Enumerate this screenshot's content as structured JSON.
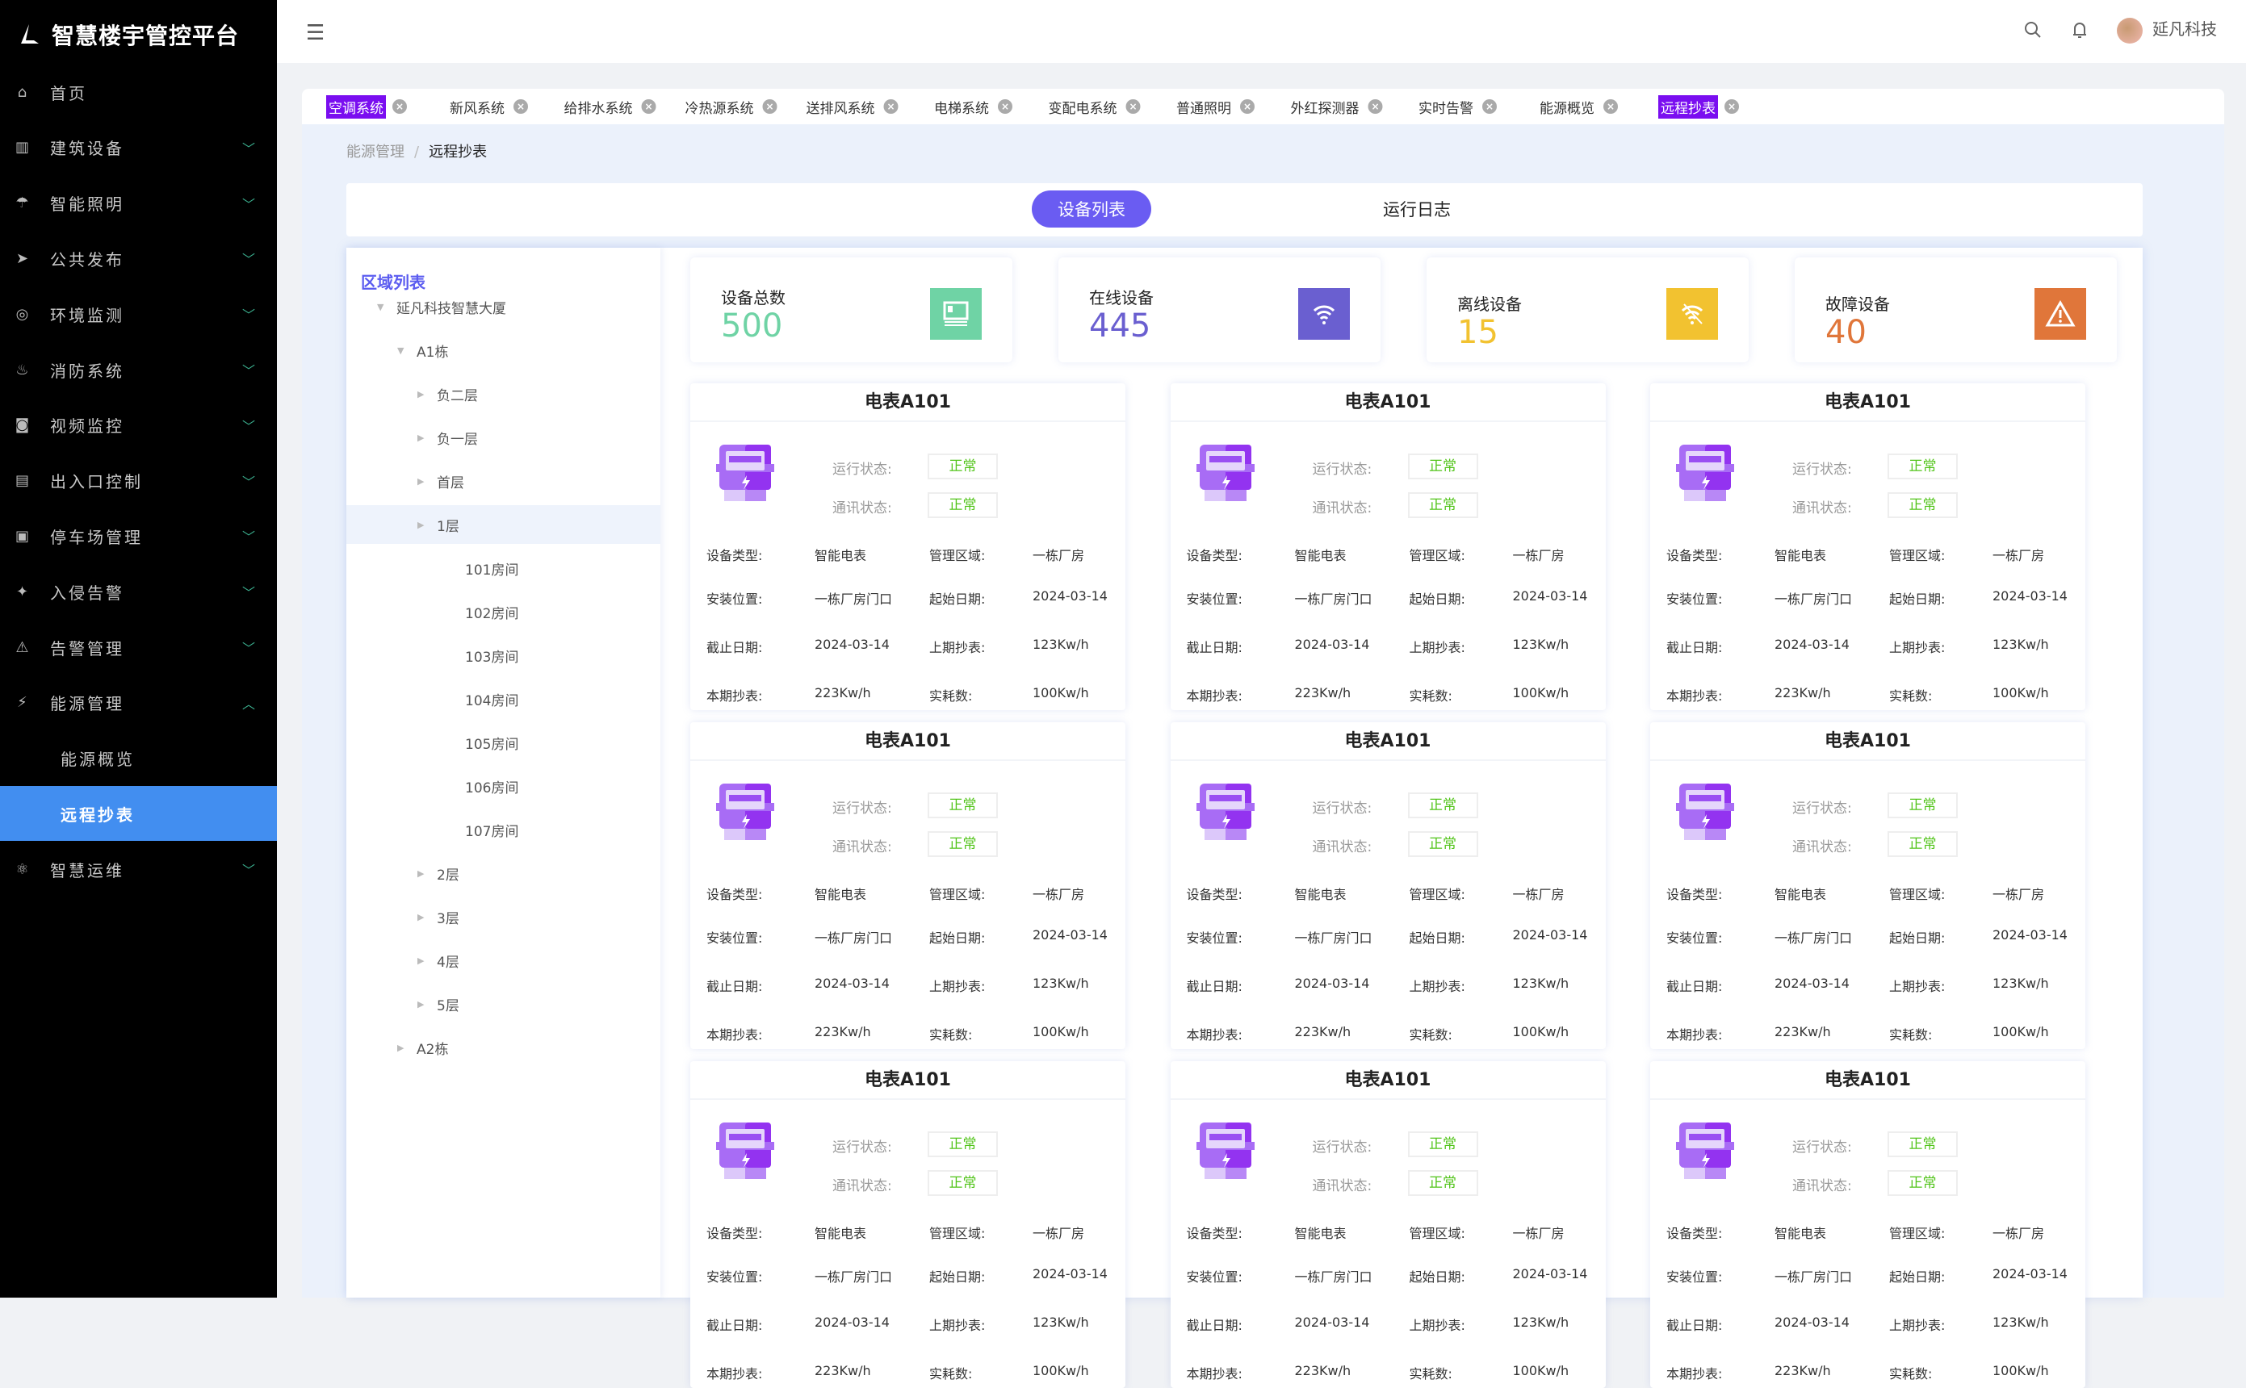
{
  "app": {
    "title": "智慧楼宇管控平台"
  },
  "sidebar": {
    "items": [
      {
        "label": "首页",
        "icon": "bank-icon",
        "glyph": "⌂",
        "chevron": ""
      },
      {
        "label": "建筑设备",
        "icon": "building-icon",
        "glyph": "▥",
        "chevron": "down"
      },
      {
        "label": "智能照明",
        "icon": "lamp-icon",
        "glyph": "☂",
        "chevron": "down"
      },
      {
        "label": "公共发布",
        "icon": "send-icon",
        "glyph": "➤",
        "chevron": "down"
      },
      {
        "label": "环境监测",
        "icon": "environment-icon",
        "glyph": "◎",
        "chevron": "down"
      },
      {
        "label": "消防系统",
        "icon": "fire-icon",
        "glyph": "♨",
        "chevron": "down"
      },
      {
        "label": "视频监控",
        "icon": "camera-icon",
        "glyph": "◙",
        "chevron": "down"
      },
      {
        "label": "出入口控制",
        "icon": "door-icon",
        "glyph": "▤",
        "chevron": "down"
      },
      {
        "label": "停车场管理",
        "icon": "parking-icon",
        "glyph": "▣",
        "chevron": "down"
      },
      {
        "label": "入侵告警",
        "icon": "intruder-icon",
        "glyph": "✦",
        "chevron": "down"
      },
      {
        "label": "告警管理",
        "icon": "alarm-icon",
        "glyph": "⚠",
        "chevron": "down"
      },
      {
        "label": "能源管理",
        "icon": "energy-icon",
        "glyph": "⚡",
        "chevron": "up"
      },
      {
        "label": "能源概览",
        "sub": true,
        "chevron": ""
      },
      {
        "label": "远程抄表",
        "sub": true,
        "active": true,
        "chevron": ""
      },
      {
        "label": "智慧运维",
        "icon": "atom-icon",
        "glyph": "⚛",
        "chevron": "down"
      }
    ]
  },
  "header": {
    "user": "延凡科技"
  },
  "tabs": [
    {
      "label": "空调系统",
      "active": true
    },
    {
      "label": "新风系统"
    },
    {
      "label": "给排水系统"
    },
    {
      "label": "冷热源系统"
    },
    {
      "label": "送排风系统"
    },
    {
      "label": "电梯系统"
    },
    {
      "label": "变配电系统"
    },
    {
      "label": "普通照明"
    },
    {
      "label": "外红探测器"
    },
    {
      "label": "实时告警"
    },
    {
      "label": "能源概览"
    },
    {
      "label": "远程抄表",
      "active": true
    }
  ],
  "breadcrumb": {
    "parent": "能源管理",
    "current": "远程抄表"
  },
  "switch": {
    "device_list": "设备列表",
    "run_log": "运行日志"
  },
  "tree": {
    "title": "区域列表",
    "nodes": [
      {
        "label": "延凡科技智慧大厦",
        "level": 0,
        "arrow": "down"
      },
      {
        "label": "A1栋",
        "level": 1,
        "arrow": "down"
      },
      {
        "label": "负二层",
        "level": 2,
        "arrow": "right"
      },
      {
        "label": "负一层",
        "level": 2,
        "arrow": "right"
      },
      {
        "label": "首层",
        "level": 2,
        "arrow": "right"
      },
      {
        "label": "1层",
        "level": 2,
        "arrow": "right",
        "selected": true
      },
      {
        "label": "101房间",
        "level": 3
      },
      {
        "label": "102房间",
        "level": 3
      },
      {
        "label": "103房间",
        "level": 3
      },
      {
        "label": "104房间",
        "level": 3
      },
      {
        "label": "105房间",
        "level": 3
      },
      {
        "label": "106房间",
        "level": 3
      },
      {
        "label": "107房间",
        "level": 3
      },
      {
        "label": "2层",
        "level": 2,
        "arrow": "right"
      },
      {
        "label": "3层",
        "level": 2,
        "arrow": "right"
      },
      {
        "label": "4层",
        "level": 2,
        "arrow": "right"
      },
      {
        "label": "5层",
        "level": 2,
        "arrow": "right"
      },
      {
        "label": "A2栋",
        "level": 1,
        "arrow": "right"
      }
    ]
  },
  "stats": [
    {
      "label": "设备总数",
      "value": "500",
      "color": "#6fd3a5",
      "icon": "device-icon"
    },
    {
      "label": "在线设备",
      "value": "445",
      "color": "#6a5fd0",
      "icon": "wifi-icon"
    },
    {
      "label": "离线设备",
      "value": "15",
      "color": "#f2c230",
      "icon": "wifi-off-icon"
    },
    {
      "label": "故障设备",
      "value": "40",
      "color": "#e0763a",
      "icon": "warning-icon"
    }
  ],
  "card_labels": {
    "run": "运行状态:",
    "comm": "通讯状态:",
    "type": "设备类型:",
    "area": "管理区域:",
    "loc": "安装位置:",
    "start": "起始日期:",
    "end": "截止日期:",
    "last": "上期抄表:",
    "cur": "本期抄表:",
    "used": "实耗数:"
  },
  "cards": [
    {
      "title": "电表A101",
      "run": "正常",
      "comm": "正常",
      "type": "智能电表",
      "area": "一栋厂房",
      "loc": "一栋厂房门口",
      "start": "2024-03-14",
      "end": "2024-03-14",
      "last": "123Kw/h",
      "cur": "223Kw/h",
      "used": "100Kw/h"
    },
    {
      "title": "电表A101",
      "run": "正常",
      "comm": "正常",
      "type": "智能电表",
      "area": "一栋厂房",
      "loc": "一栋厂房门口",
      "start": "2024-03-14",
      "end": "2024-03-14",
      "last": "123Kw/h",
      "cur": "223Kw/h",
      "used": "100Kw/h"
    },
    {
      "title": "电表A101",
      "run": "正常",
      "comm": "正常",
      "type": "智能电表",
      "area": "一栋厂房",
      "loc": "一栋厂房门口",
      "start": "2024-03-14",
      "end": "2024-03-14",
      "last": "123Kw/h",
      "cur": "223Kw/h",
      "used": "100Kw/h"
    },
    {
      "title": "电表A101",
      "run": "正常",
      "comm": "正常",
      "type": "智能电表",
      "area": "一栋厂房",
      "loc": "一栋厂房门口",
      "start": "2024-03-14",
      "end": "2024-03-14",
      "last": "123Kw/h",
      "cur": "223Kw/h",
      "used": "100Kw/h"
    },
    {
      "title": "电表A101",
      "run": "正常",
      "comm": "正常",
      "type": "智能电表",
      "area": "一栋厂房",
      "loc": "一栋厂房门口",
      "start": "2024-03-14",
      "end": "2024-03-14",
      "last": "123Kw/h",
      "cur": "223Kw/h",
      "used": "100Kw/h"
    },
    {
      "title": "电表A101",
      "run": "正常",
      "comm": "正常",
      "type": "智能电表",
      "area": "一栋厂房",
      "loc": "一栋厂房门口",
      "start": "2024-03-14",
      "end": "2024-03-14",
      "last": "123Kw/h",
      "cur": "223Kw/h",
      "used": "100Kw/h"
    },
    {
      "title": "电表A101",
      "run": "正常",
      "comm": "正常",
      "type": "智能电表",
      "area": "一栋厂房",
      "loc": "一栋厂房门口",
      "start": "2024-03-14",
      "end": "2024-03-14",
      "last": "123Kw/h",
      "cur": "223Kw/h",
      "used": "100Kw/h"
    },
    {
      "title": "电表A101",
      "run": "正常",
      "comm": "正常",
      "type": "智能电表",
      "area": "一栋厂房",
      "loc": "一栋厂房门口",
      "start": "2024-03-14",
      "end": "2024-03-14",
      "last": "123Kw/h",
      "cur": "223Kw/h",
      "used": "100Kw/h"
    },
    {
      "title": "电表A101",
      "run": "正常",
      "comm": "正常",
      "type": "智能电表",
      "area": "一栋厂房",
      "loc": "一栋厂房门口",
      "start": "2024-03-14",
      "end": "2024-03-14",
      "last": "123Kw/h",
      "cur": "223Kw/h",
      "used": "100Kw/h"
    }
  ],
  "colors": {
    "accent": "#6a5cf2",
    "tab_active": "#7a0ef0",
    "sidebar_active": "#428ef0",
    "status_ok": "#52c41a"
  }
}
